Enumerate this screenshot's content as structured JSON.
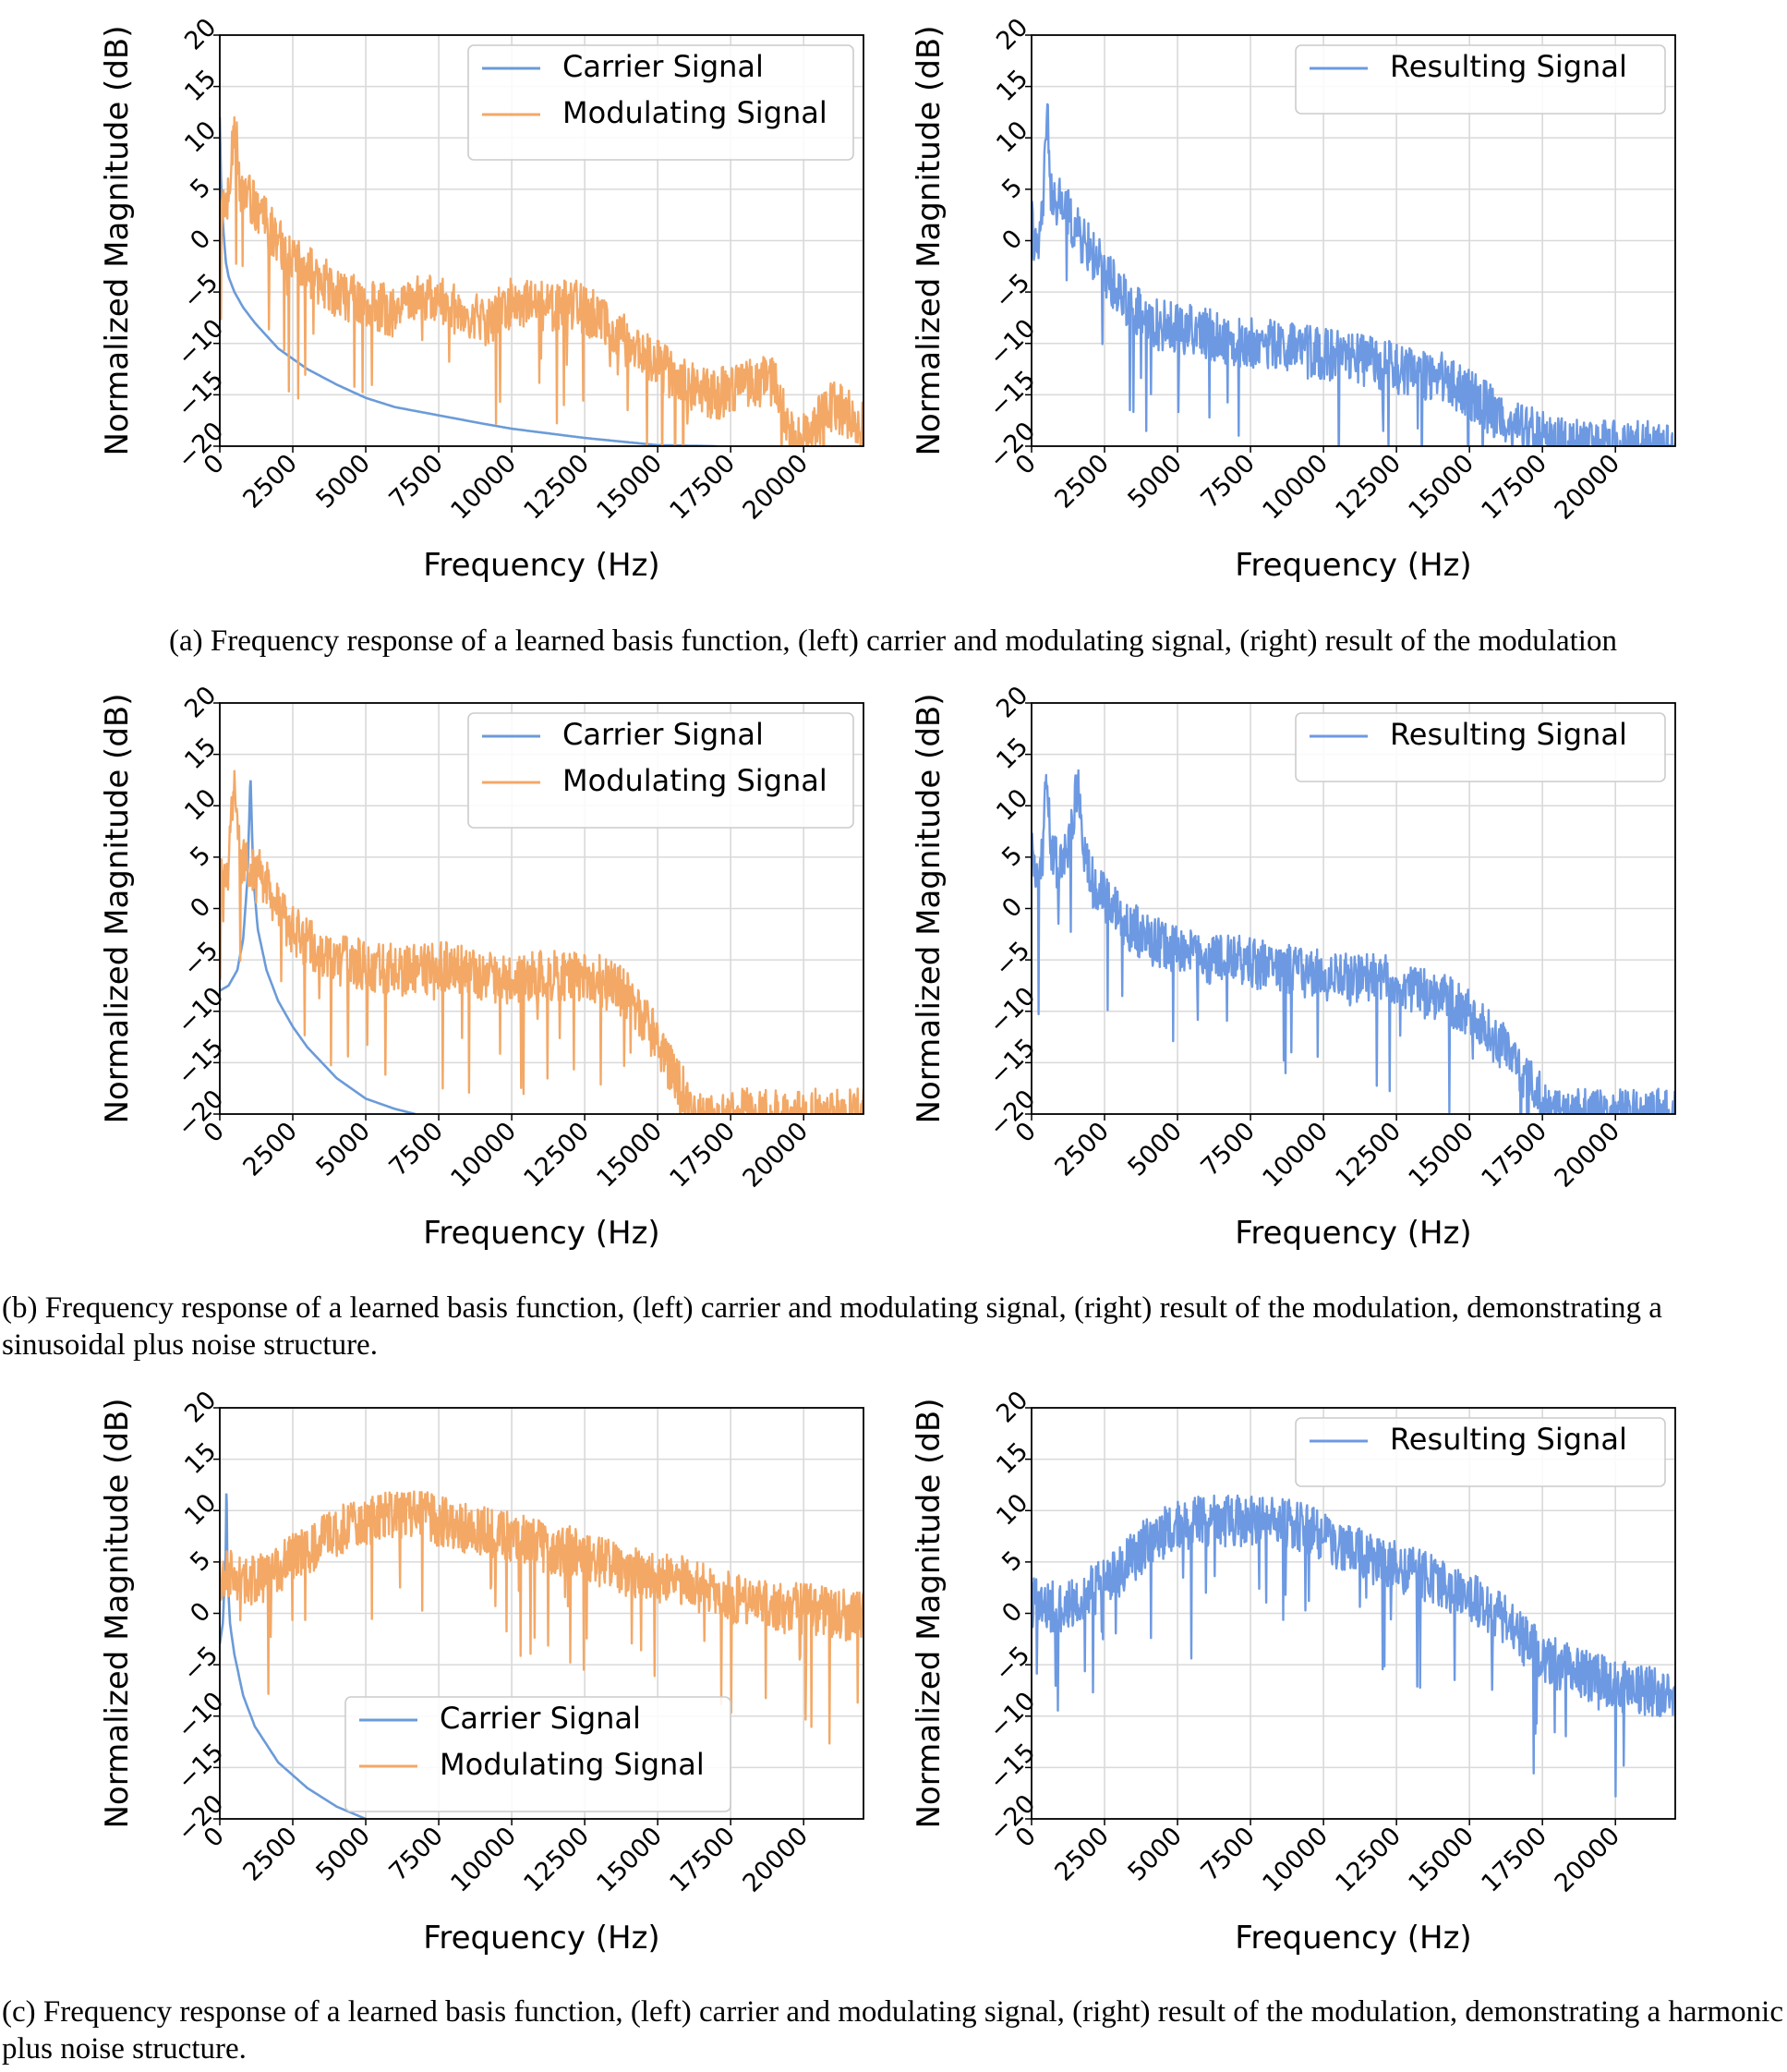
{
  "captions": {
    "a": "(a) Frequency response of a learned basis function, (left) carrier and modulating signal, (right) result of the modulation",
    "b": "(b) Frequency response of a learned basis function, (left) carrier and modulating signal, (right) result of the modulation, demonstrating a sinusoidal plus noise structure.",
    "c": "(c) Frequency response of a learned basis function, (left) carrier and modulating signal, (right) result of the modulation, demonstrating a harmonic plus noise structure."
  },
  "colors": {
    "carrier": "#6b9bd8",
    "modulating": "#f3a866",
    "resulting": "#6d99e2",
    "grid": "#d9d9d9"
  },
  "chart_data": [
    {
      "id": "a-left",
      "type": "line",
      "xlabel": "Frequency (Hz)",
      "ylabel": "Normalized Magnitude (dB)",
      "xlim": [
        0,
        22050
      ],
      "ylim": [
        -20,
        20
      ],
      "xticks": [
        0,
        2500,
        5000,
        7500,
        10000,
        12500,
        15000,
        17500,
        20000
      ],
      "yticks": [
        -20,
        -15,
        -10,
        -5,
        0,
        5,
        10,
        15,
        20
      ],
      "grid": true,
      "legend": "top-right",
      "series": [
        {
          "name": "Carrier Signal",
          "color": "#6b9bd8",
          "x": [
            0,
            50,
            100,
            200,
            300,
            500,
            800,
            1200,
            2000,
            3000,
            4000,
            5000,
            6000,
            7500,
            9000,
            10000,
            12500,
            15000,
            17000
          ],
          "y": [
            12,
            5,
            2,
            -2,
            -3.5,
            -5,
            -6.5,
            -8,
            -10.5,
            -12.5,
            -14,
            -15.3,
            -16.2,
            -17,
            -17.8,
            -18.3,
            -19.2,
            -19.9,
            -20
          ]
        },
        {
          "name": "Modulating Signal",
          "color": "#f3a866",
          "x": [
            0,
            300,
            500,
            700,
            1000,
            1500,
            2000,
            2500,
            3000,
            4000,
            5000,
            6000,
            7000,
            8000,
            9000,
            10000,
            11000,
            12000,
            13000,
            14000,
            15000,
            16000,
            17000,
            18000,
            19000,
            19500,
            20000,
            21000,
            22050
          ],
          "y": [
            3,
            4,
            12,
            5,
            4,
            2,
            0,
            -2,
            -3,
            -5,
            -6,
            -7,
            -5.5,
            -6,
            -8,
            -6,
            -6.5,
            -6,
            -7.5,
            -10,
            -12,
            -14,
            -15,
            -14,
            -13.5,
            -19,
            -19,
            -16,
            -18
          ]
        }
      ]
    },
    {
      "id": "a-right",
      "type": "line",
      "xlabel": "Frequency (Hz)",
      "ylabel": "Normalized Magnitude (dB)",
      "xlim": [
        0,
        22050
      ],
      "ylim": [
        -20,
        20
      ],
      "xticks": [
        0,
        2500,
        5000,
        7500,
        10000,
        12500,
        15000,
        17500,
        20000
      ],
      "yticks": [
        -20,
        -15,
        -10,
        -5,
        0,
        5,
        10,
        15,
        20
      ],
      "grid": true,
      "legend": "top-right",
      "series": [
        {
          "name": "Resulting Signal",
          "color": "#6d99e2",
          "x": [
            0,
            200,
            400,
            550,
            700,
            1000,
            1500,
            2000,
            2500,
            3000,
            4000,
            5000,
            6000,
            7000,
            8000,
            9000,
            10000,
            11000,
            12000,
            13000,
            14000,
            15000,
            16000,
            17000,
            18000,
            19000,
            20000,
            21000,
            22050
          ],
          "y": [
            2,
            -2,
            4,
            12,
            3,
            4,
            1,
            -1,
            -3,
            -5,
            -8,
            -8.5,
            -9,
            -10,
            -10,
            -10.5,
            -11,
            -11.5,
            -12,
            -13,
            -13,
            -15,
            -17,
            -18.5,
            -19.5,
            -20,
            -20,
            -20,
            -20
          ]
        }
      ]
    },
    {
      "id": "b-left",
      "type": "line",
      "xlabel": "Frequency (Hz)",
      "ylabel": "Normalized Magnitude (dB)",
      "xlim": [
        0,
        22050
      ],
      "ylim": [
        -20,
        20
      ],
      "xticks": [
        0,
        2500,
        5000,
        7500,
        10000,
        12500,
        15000,
        17500,
        20000
      ],
      "yticks": [
        -20,
        -15,
        -10,
        -5,
        0,
        5,
        10,
        15,
        20
      ],
      "grid": true,
      "legend": "top-right",
      "series": [
        {
          "name": "Carrier Signal",
          "color": "#6b9bd8",
          "x": [
            0,
            300,
            600,
            800,
            950,
            1050,
            1150,
            1300,
            1600,
            2000,
            2500,
            3000,
            4000,
            5000,
            6000,
            6700
          ],
          "y": [
            -8,
            -7.5,
            -6,
            -3,
            3,
            13,
            3,
            -2,
            -6,
            -9,
            -11.5,
            -13.5,
            -16.5,
            -18.5,
            -19.5,
            -20
          ]
        },
        {
          "name": "Modulating Signal",
          "color": "#f3a866",
          "x": [
            0,
            300,
            500,
            700,
            1000,
            1500,
            2000,
            2500,
            3000,
            4000,
            5000,
            6000,
            7000,
            8000,
            9000,
            10000,
            11000,
            12000,
            13000,
            14000,
            15000,
            15500,
            16000,
            16500
          ],
          "y": [
            3,
            4,
            13,
            5,
            4,
            3,
            0,
            -2,
            -3.5,
            -5,
            -5.5,
            -6,
            -6,
            -5.5,
            -6.5,
            -7,
            -6.5,
            -6.5,
            -7,
            -8.5,
            -13,
            -16,
            -18.5,
            -20
          ]
        }
      ]
    },
    {
      "id": "b-right",
      "type": "line",
      "xlabel": "Frequency (Hz)",
      "ylabel": "Normalized Magnitude (dB)",
      "xlim": [
        0,
        22050
      ],
      "ylim": [
        -20,
        20
      ],
      "xticks": [
        0,
        2500,
        5000,
        7500,
        10000,
        12500,
        15000,
        17500,
        20000
      ],
      "yticks": [
        -20,
        -15,
        -10,
        -5,
        0,
        5,
        10,
        15,
        20
      ],
      "grid": true,
      "legend": "top-right",
      "series": [
        {
          "name": "Resulting Signal",
          "color": "#6d99e2",
          "x": [
            0,
            200,
            400,
            500,
            700,
            1000,
            1300,
            1600,
            1800,
            2000,
            2500,
            3000,
            4000,
            5000,
            6000,
            7000,
            8000,
            9000,
            10000,
            11000,
            12000,
            13000,
            14000,
            15000,
            16000,
            17000,
            18000
          ],
          "y": [
            5,
            3,
            6,
            13,
            5,
            4,
            6,
            13,
            5,
            3,
            1,
            -1,
            -3,
            -4,
            -5,
            -5,
            -5.5,
            -6,
            -6.5,
            -7,
            -6.5,
            -8,
            -8.5,
            -10,
            -13,
            -17,
            -20
          ]
        }
      ]
    },
    {
      "id": "c-left",
      "type": "line",
      "xlabel": "Frequency (Hz)",
      "ylabel": "Normalized Magnitude (dB)",
      "xlim": [
        0,
        22050
      ],
      "ylim": [
        -20,
        20
      ],
      "xticks": [
        0,
        2500,
        5000,
        7500,
        10000,
        12500,
        15000,
        17500,
        20000
      ],
      "yticks": [
        -20,
        -15,
        -10,
        -5,
        0,
        5,
        10,
        15,
        20
      ],
      "grid": true,
      "legend": "lower-center",
      "series": [
        {
          "name": "Carrier Signal",
          "color": "#6b9bd8",
          "x": [
            0,
            100,
            200,
            230,
            260,
            350,
            500,
            800,
            1200,
            2000,
            3000,
            4000,
            5000
          ],
          "y": [
            -3,
            -1,
            5,
            13,
            4,
            -1,
            -4,
            -8,
            -11,
            -14.5,
            -17,
            -18.8,
            -20
          ]
        },
        {
          "name": "Modulating Signal",
          "color": "#f3a866",
          "x": [
            0,
            500,
            1000,
            1500,
            2000,
            3000,
            4000,
            5000,
            6000,
            7000,
            8000,
            9000,
            10000,
            11000,
            12000,
            13000,
            14000,
            15000,
            16000,
            17000,
            18000,
            19000,
            20000,
            21000,
            22050
          ],
          "y": [
            3.5,
            4,
            3,
            3.5,
            4.5,
            6,
            8,
            9,
            9.5,
            9.5,
            8.5,
            8,
            7.5,
            6.5,
            6,
            5,
            4,
            3.5,
            3,
            2,
            1,
            0.5,
            0.5,
            0,
            -0.5
          ]
        }
      ]
    },
    {
      "id": "c-right",
      "type": "line",
      "xlabel": "Frequency (Hz)",
      "ylabel": "Normalized Magnitude (dB)",
      "xlim": [
        0,
        22050
      ],
      "ylim": [
        -20,
        20
      ],
      "xticks": [
        0,
        2500,
        5000,
        7500,
        10000,
        12500,
        15000,
        17500,
        20000
      ],
      "yticks": [
        -20,
        -15,
        -10,
        -5,
        0,
        5,
        10,
        15,
        20
      ],
      "grid": true,
      "legend": "top-right",
      "series": [
        {
          "name": "Resulting Signal",
          "color": "#6d99e2",
          "x": [
            0,
            1000,
            2000,
            3000,
            4000,
            5000,
            6000,
            7000,
            8000,
            9000,
            10000,
            11000,
            12000,
            13000,
            14000,
            15000,
            16000,
            17000,
            18000,
            19000,
            20000,
            21000,
            22050
          ],
          "y": [
            1,
            0.5,
            2,
            4,
            7,
            8.5,
            9,
            9,
            9,
            8.5,
            7.5,
            6,
            5,
            4,
            3,
            1.5,
            0,
            -3,
            -5,
            -6,
            -7,
            -7.5,
            -8
          ]
        }
      ]
    }
  ]
}
